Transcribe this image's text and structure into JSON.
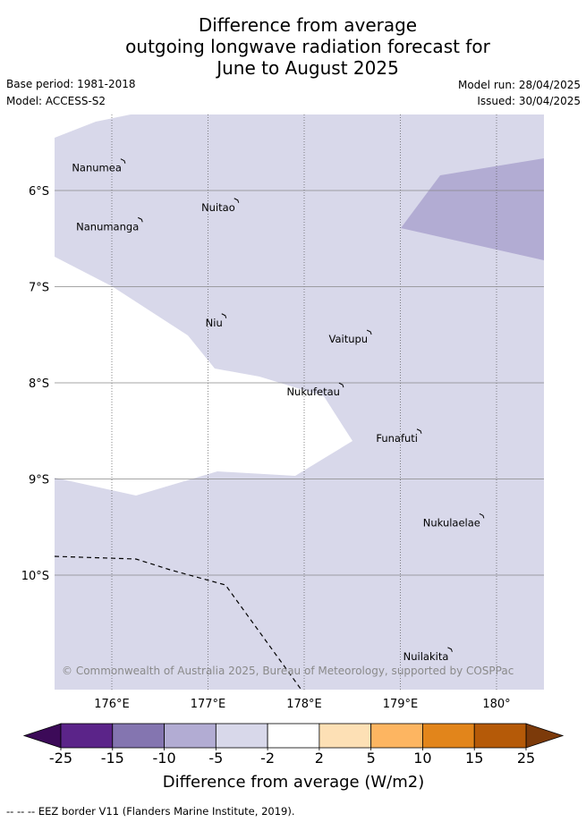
{
  "title": {
    "line1": "Difference from average",
    "line2": "outgoing longwave radiation forecast for",
    "line3": "June to August 2025"
  },
  "meta": {
    "base_period": "Base period: 1981-2018",
    "model": "Model: ACCESS-S2",
    "model_run": "Model run: 28/04/2025",
    "issued": "Issued: 30/04/2025"
  },
  "map": {
    "lon_range": [
      175.45,
      180.5
    ],
    "lat_range": [
      -5.3,
      -11.3
    ],
    "lon_ticks": [
      {
        "value": 176,
        "label": "176°E"
      },
      {
        "value": 177,
        "label": "177°E"
      },
      {
        "value": 178,
        "label": "178°E"
      },
      {
        "value": 179,
        "label": "179°E"
      },
      {
        "value": 180,
        "label": "180°"
      }
    ],
    "lat_ticks": [
      {
        "value": -6,
        "label": "6°S"
      },
      {
        "value": -7,
        "label": "7°S"
      },
      {
        "value": -8,
        "label": "8°S"
      },
      {
        "value": -9,
        "label": "9°S"
      },
      {
        "value": -10,
        "label": "10°S"
      }
    ],
    "background_category": "-5 to -2",
    "background_color": "#d8d8ea",
    "patch_category": "-10 to -5",
    "patch_color": "#b2acd3",
    "islands": [
      {
        "name": "Nanumea",
        "lon": 176.12,
        "lat": -5.69
      },
      {
        "name": "Nuitao",
        "lon": 177.3,
        "lat": -6.1
      },
      {
        "name": "Nanumanga",
        "lon": 176.3,
        "lat": -6.3
      },
      {
        "name": "Niu",
        "lon": 177.17,
        "lat": -7.3
      },
      {
        "name": "Vaitupu",
        "lon": 178.68,
        "lat": -7.47
      },
      {
        "name": "Nukufetau",
        "lon": 178.39,
        "lat": -8.02
      },
      {
        "name": "Funafuti",
        "lon": 179.2,
        "lat": -8.5
      },
      {
        "name": "Nukulaelae",
        "lon": 179.85,
        "lat": -9.38
      },
      {
        "name": "Nuilakita",
        "lon": 179.52,
        "lat": -10.77
      }
    ],
    "copyright": "© Commonwealth of Australia 2025, Bureau of Meteorology, supported by COSPPac"
  },
  "colorbar": {
    "title": "Difference from average (W/m2)",
    "bounds": [
      "-25",
      "-15",
      "-10",
      "-5",
      "-2",
      "2",
      "5",
      "10",
      "15",
      "25"
    ],
    "colors": [
      "#5b2489",
      "#8475b0",
      "#b2acd3",
      "#d8d8ea",
      "#ffffff",
      "#fde0b5",
      "#fdb561",
      "#e2851b",
      "#b55a08"
    ],
    "under_color": "#3c0a58",
    "over_color": "#7c3a0a"
  },
  "footer": "-- -- -- EEZ border V11 (Flanders Marine Institute, 2019)."
}
